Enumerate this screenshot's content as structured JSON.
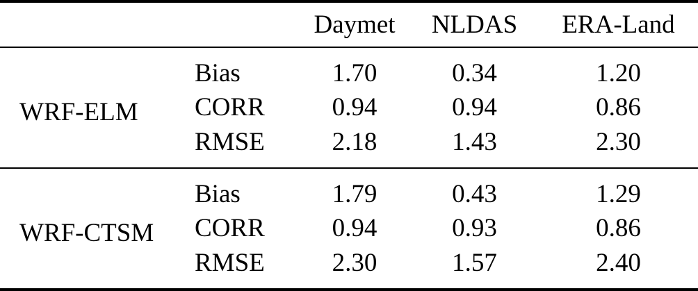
{
  "colors": {
    "text": "#000000",
    "background": "#ffffff",
    "rule": "#000000"
  },
  "table": {
    "columns": [
      "Daymet",
      "NLDAS",
      "ERA-Land"
    ],
    "groups": [
      {
        "label": "WRF-ELM",
        "rows": [
          {
            "metric": "Bias",
            "values": [
              "1.70",
              "0.34",
              "1.20"
            ]
          },
          {
            "metric": "CORR",
            "values": [
              "0.94",
              "0.94",
              "0.86"
            ]
          },
          {
            "metric": "RMSE",
            "values": [
              "2.18",
              "1.43",
              "2.30"
            ]
          }
        ]
      },
      {
        "label": "WRF-CTSM",
        "rows": [
          {
            "metric": "Bias",
            "values": [
              "1.79",
              "0.43",
              "1.29"
            ]
          },
          {
            "metric": "CORR",
            "values": [
              "0.94",
              "0.93",
              "0.86"
            ]
          },
          {
            "metric": "RMSE",
            "values": [
              "2.30",
              "1.57",
              "2.40"
            ]
          }
        ]
      }
    ]
  }
}
